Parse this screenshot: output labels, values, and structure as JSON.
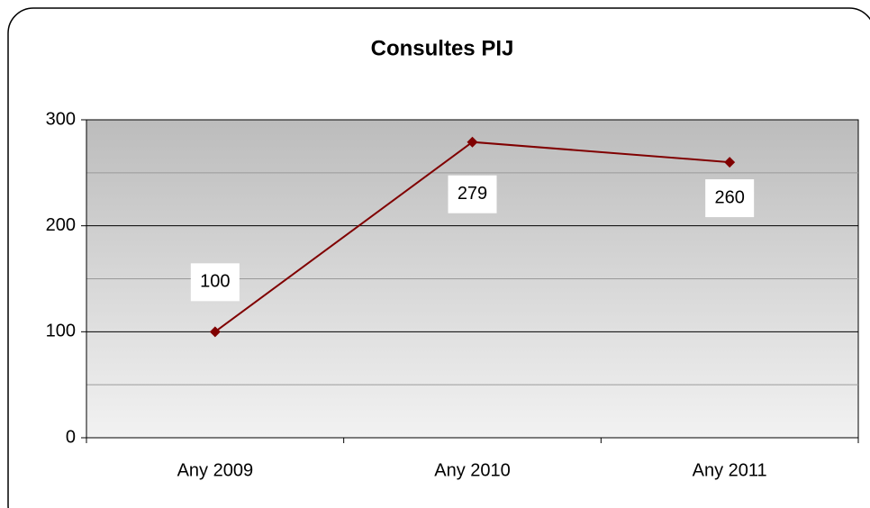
{
  "chart_data": {
    "type": "line",
    "title": "Consultes PIJ",
    "categories": [
      "Any 2009",
      "Any 2010",
      "Any 2011"
    ],
    "series": [
      {
        "name": "Consultes",
        "color": "#800000",
        "values": [
          100,
          279,
          260
        ]
      }
    ],
    "ylim": [
      0,
      300
    ],
    "yticks": [
      0,
      100,
      200,
      300
    ],
    "minor_grid": [
      50,
      150,
      250
    ],
    "grid": true
  }
}
